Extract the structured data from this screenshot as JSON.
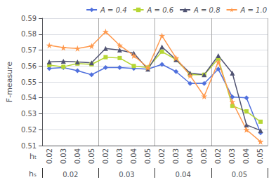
{
  "chart_data": {
    "type": "line",
    "ylabel": "F-measure",
    "xlabel": "hₜ",
    "categories": [
      "0.02",
      "0.03",
      "0.04",
      "0.05",
      "0.02",
      "0.03",
      "0.04",
      "0.05",
      "0.02",
      "0.03",
      "0.04",
      "0.05",
      "0.02",
      "0.03",
      "0.04",
      "0.05"
    ],
    "group_label": "hₛ",
    "groups": [
      "0.02",
      "0.03",
      "0.04",
      "0.05"
    ],
    "series": [
      {
        "name": "A = 0.4",
        "marker": "diamond",
        "values": [
          0.5585,
          0.559,
          0.557,
          0.5545,
          0.559,
          0.559,
          0.5585,
          0.558,
          0.561,
          0.5565,
          0.549,
          0.549,
          0.558,
          0.5405,
          0.54,
          0.518
        ]
      },
      {
        "name": "A = 0.6",
        "marker": "square",
        "values": [
          0.5605,
          0.5595,
          0.5615,
          0.561,
          0.5655,
          0.565,
          0.56,
          0.559,
          0.569,
          0.564,
          0.5545,
          0.5545,
          0.5645,
          0.535,
          0.5315,
          0.525
        ]
      },
      {
        "name": "A = 0.8",
        "marker": "triangle",
        "values": [
          0.5625,
          0.563,
          0.5625,
          0.562,
          0.571,
          0.57,
          0.568,
          0.558,
          0.572,
          0.564,
          0.5555,
          0.5545,
          0.5665,
          0.5555,
          0.523,
          0.5195
        ]
      },
      {
        "name": "A = 1.0",
        "marker": "star",
        "values": [
          0.573,
          0.5715,
          0.571,
          0.5725,
          0.5815,
          0.573,
          0.5665,
          0.559,
          0.579,
          0.565,
          0.554,
          0.541,
          0.5625,
          0.5375,
          0.52,
          0.5125
        ]
      }
    ],
    "ylim": [
      0.51,
      0.59
    ],
    "yticks": [
      0.51,
      0.52,
      0.53,
      0.54,
      0.55,
      0.56,
      0.57,
      0.58,
      0.59
    ],
    "grid": true,
    "legend": "upper right"
  }
}
